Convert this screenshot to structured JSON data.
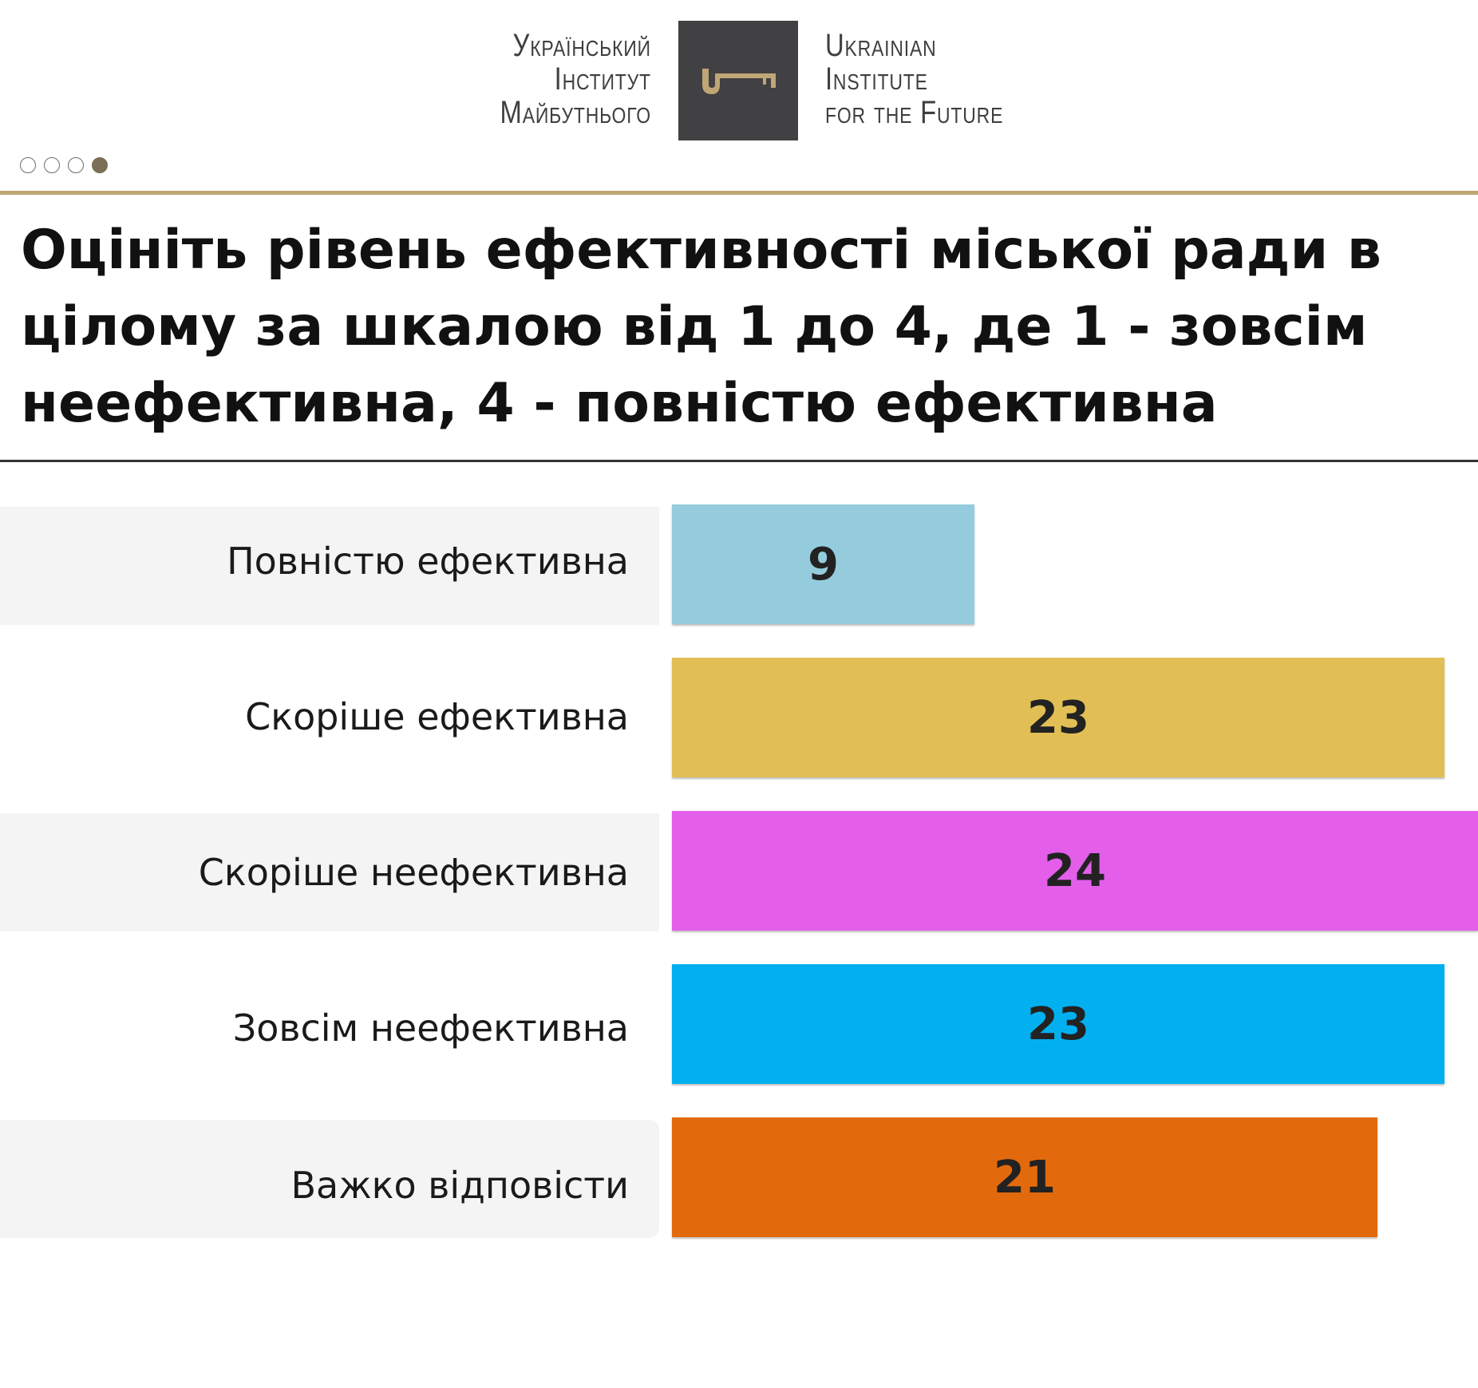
{
  "logo": {
    "ua_lines": [
      "Український",
      "Інститут",
      "Майбутнього"
    ],
    "en_lines": [
      "Ukrainian",
      "Institute",
      "for the Future"
    ],
    "accent_color": "#bea676",
    "box_color": "#414042"
  },
  "pagination": {
    "total": 4,
    "active": 4
  },
  "title": "Оцініть рівень ефективності міської ради в цілому за шкалою від 1 до 4, де 1 - зовсім неефективна, 4 - повністю ефективна",
  "chart_data": {
    "type": "bar",
    "orientation": "horizontal",
    "title": "Оцініть рівень ефективності міської ради в цілому за шкалою від 1 до 4, де 1 - зовсім неефективна, 4 - повністю ефективна",
    "categories": [
      "Повністю ефективна",
      "Скоріше ефективна",
      "Скоріше неефективна",
      "Зовсім неефективна",
      "Важко відповісти"
    ],
    "values": [
      9,
      23,
      24,
      23,
      21
    ],
    "labels": [
      "9",
      "23",
      "24",
      "23",
      "21"
    ],
    "colors": [
      "#95ccdd",
      "#e2bf55",
      "#e35fea",
      "#02b0ef",
      "#e26a0c"
    ],
    "xlim": [
      0,
      24
    ],
    "grid": false,
    "legend": "none"
  }
}
